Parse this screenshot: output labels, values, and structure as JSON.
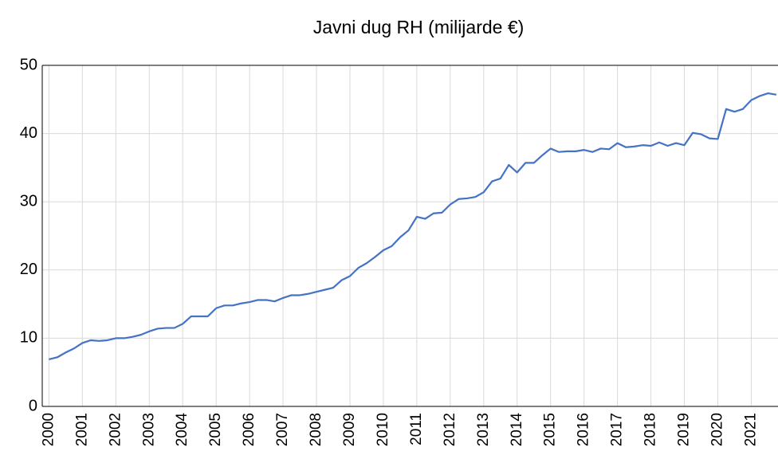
{
  "chart_data": {
    "type": "line",
    "title": "Javni dug RH (milijarde €)",
    "x": [
      2000,
      2000.25,
      2000.5,
      2000.75,
      2001,
      2001.25,
      2001.5,
      2001.75,
      2002,
      2002.25,
      2002.5,
      2002.75,
      2003,
      2003.25,
      2003.5,
      2003.75,
      2004,
      2004.25,
      2004.5,
      2004.75,
      2005,
      2005.25,
      2005.5,
      2005.75,
      2006,
      2006.25,
      2006.5,
      2006.75,
      2007,
      2007.25,
      2007.5,
      2007.75,
      2008,
      2008.25,
      2008.5,
      2008.75,
      2009,
      2009.25,
      2009.5,
      2009.75,
      2010,
      2010.25,
      2010.5,
      2010.75,
      2011,
      2011.25,
      2011.5,
      2011.75,
      2012,
      2012.25,
      2012.5,
      2012.75,
      2013,
      2013.25,
      2013.5,
      2013.75,
      2014,
      2014.25,
      2014.5,
      2014.75,
      2015,
      2015.25,
      2015.5,
      2015.75,
      2016,
      2016.25,
      2016.5,
      2016.75,
      2017,
      2017.25,
      2017.5,
      2017.75,
      2018,
      2018.25,
      2018.5,
      2018.75,
      2019,
      2019.25,
      2019.5,
      2019.75,
      2020,
      2020.25,
      2020.5,
      2020.75,
      2021,
      2021.25,
      2021.5,
      2021.75
    ],
    "series": [
      {
        "color": "#4472c4",
        "values": [
          6.9,
          7.2,
          7.9,
          8.5,
          9.3,
          9.7,
          9.6,
          9.7,
          10.0,
          10.0,
          10.2,
          10.5,
          11.0,
          11.4,
          11.5,
          11.5,
          12.1,
          13.2,
          13.2,
          13.2,
          14.4,
          14.8,
          14.8,
          15.1,
          15.3,
          15.6,
          15.6,
          15.4,
          15.9,
          16.3,
          16.3,
          16.5,
          16.8,
          17.1,
          17.4,
          18.5,
          19.1,
          20.3,
          21.0,
          21.9,
          22.9,
          23.5,
          24.8,
          25.8,
          27.8,
          27.5,
          28.3,
          28.4,
          29.6,
          30.4,
          30.5,
          30.7,
          31.4,
          33.0,
          33.4,
          35.4,
          34.3,
          35.7,
          35.7,
          36.8,
          37.8,
          37.3,
          37.4,
          37.4,
          37.6,
          37.3,
          37.8,
          37.7,
          38.6,
          38.0,
          38.1,
          38.3,
          38.2,
          38.7,
          38.2,
          38.6,
          38.3,
          40.1,
          39.9,
          39.3,
          39.2,
          43.6,
          43.2,
          43.6,
          44.9,
          45.5,
          45.9,
          45.7
        ]
      }
    ],
    "xlim": [
      1999.8,
      2021.8
    ],
    "xticks": [
      2000,
      2001,
      2002,
      2003,
      2004,
      2005,
      2006,
      2007,
      2008,
      2009,
      2010,
      2011,
      2012,
      2013,
      2014,
      2015,
      2016,
      2017,
      2018,
      2019,
      2020,
      2021
    ],
    "ylim": [
      0,
      50
    ],
    "yticks": [
      0,
      10,
      20,
      30,
      40,
      50
    ],
    "grid": true
  }
}
